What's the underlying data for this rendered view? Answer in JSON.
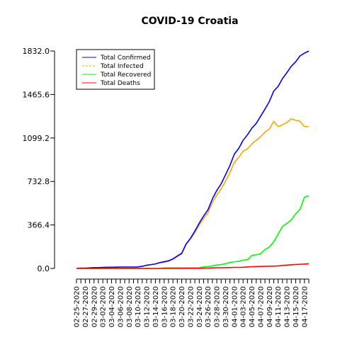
{
  "chart_data": {
    "type": "line",
    "title": "COVID-19 Croatia",
    "xlabel": "",
    "ylabel": "",
    "ylim": [
      0,
      1832.0
    ],
    "yticks": [
      0.0,
      366.4,
      732.8,
      1099.2,
      1465.6,
      1832.0
    ],
    "ytick_labels": [
      "0.0",
      "366.4",
      "732.8",
      "1099.2",
      "1465.6",
      "1832.0"
    ],
    "grid": false,
    "legend_position": "top-left",
    "xtick_labels": [
      "02-25-2020",
      "02-27-2020",
      "02-29-2020",
      "03-02-2020",
      "03-04-2020",
      "03-06-2020",
      "03-08-2020",
      "03-10-2020",
      "03-12-2020",
      "03-14-2020",
      "03-16-2020",
      "03-18-2020",
      "03-20-2020",
      "03-22-2020",
      "03-24-2020",
      "03-26-2020",
      "03-28-2020",
      "03-30-2020",
      "04-01-2020",
      "04-03-2020",
      "04-05-2020",
      "04-07-2020",
      "04-09-2020",
      "04-11-2020",
      "04-13-2020",
      "04-15-2020",
      "04-17-2020"
    ],
    "x": [
      "02-25-2020",
      "02-26-2020",
      "02-27-2020",
      "02-28-2020",
      "02-29-2020",
      "03-01-2020",
      "03-02-2020",
      "03-03-2020",
      "03-04-2020",
      "03-05-2020",
      "03-06-2020",
      "03-07-2020",
      "03-08-2020",
      "03-09-2020",
      "03-10-2020",
      "03-11-2020",
      "03-12-2020",
      "03-13-2020",
      "03-14-2020",
      "03-15-2020",
      "03-16-2020",
      "03-17-2020",
      "03-18-2020",
      "03-19-2020",
      "03-20-2020",
      "03-21-2020",
      "03-22-2020",
      "03-23-2020",
      "03-24-2020",
      "03-25-2020",
      "03-26-2020",
      "03-27-2020",
      "03-28-2020",
      "03-29-2020",
      "03-30-2020",
      "03-31-2020",
      "04-01-2020",
      "04-02-2020",
      "04-03-2020",
      "04-04-2020",
      "04-05-2020",
      "04-06-2020",
      "04-07-2020",
      "04-08-2020",
      "04-09-2020",
      "04-10-2020",
      "04-11-2020",
      "04-12-2020",
      "04-13-2020",
      "04-14-2020",
      "04-15-2020",
      "04-16-2020",
      "04-17-2020",
      "04-18-2020"
    ],
    "series": [
      {
        "name": "Total Confirmed",
        "color": "#0000ff",
        "dash": "solid",
        "values": [
          1,
          3,
          3,
          5,
          7,
          7,
          9,
          10,
          10,
          11,
          12,
          12,
          12,
          12,
          13,
          18,
          27,
          32,
          38,
          49,
          57,
          65,
          81,
          105,
          128,
          206,
          254,
          315,
          382,
          442,
          495,
          586,
          657,
          713,
          790,
          867,
          963,
          1011,
          1079,
          1126,
          1182,
          1222,
          1282,
          1343,
          1407,
          1495,
          1534,
          1600,
          1650,
          1704,
          1741,
          1791,
          1814,
          1832
        ]
      },
      {
        "name": "Total Infected",
        "color": "#ffa500",
        "dash": "dashed",
        "values": [
          1,
          3,
          3,
          5,
          7,
          7,
          9,
          10,
          10,
          11,
          12,
          12,
          12,
          12,
          13,
          18,
          27,
          32,
          38,
          49,
          52,
          60,
          76,
          100,
          123,
          201,
          249,
          302,
          366,
          420,
          470,
          555,
          618,
          670,
          735,
          808,
          895,
          935,
          989,
          1007,
          1050,
          1080,
          1110,
          1150,
          1175,
          1240,
          1195,
          1210,
          1230,
          1262,
          1248,
          1240,
          1195,
          1195
        ]
      },
      {
        "name": "Total Recovered",
        "color": "#00ff00",
        "dash": "solid",
        "values": [
          0,
          0,
          0,
          0,
          0,
          0,
          0,
          0,
          0,
          0,
          0,
          0,
          0,
          0,
          0,
          0,
          0,
          0,
          0,
          0,
          5,
          5,
          5,
          5,
          5,
          5,
          5,
          5,
          6,
          14,
          16,
          22,
          30,
          32,
          40,
          51,
          56,
          60,
          70,
          73,
          110,
          115,
          125,
          160,
          181,
          225,
          290,
          355,
          380,
          410,
          460,
          500,
          600,
          612
        ]
      },
      {
        "name": "Total Deaths",
        "color": "#ff0000",
        "dash": "solid",
        "values": [
          0,
          0,
          0,
          0,
          0,
          0,
          0,
          0,
          0,
          0,
          0,
          0,
          0,
          0,
          0,
          0,
          0,
          0,
          0,
          0,
          0,
          0,
          0,
          0,
          1,
          1,
          1,
          1,
          1,
          3,
          3,
          5,
          6,
          6,
          7,
          8,
          9,
          9,
          10,
          13,
          15,
          16,
          17,
          18,
          19,
          20,
          21,
          25,
          28,
          31,
          33,
          35,
          37,
          39
        ]
      }
    ]
  }
}
